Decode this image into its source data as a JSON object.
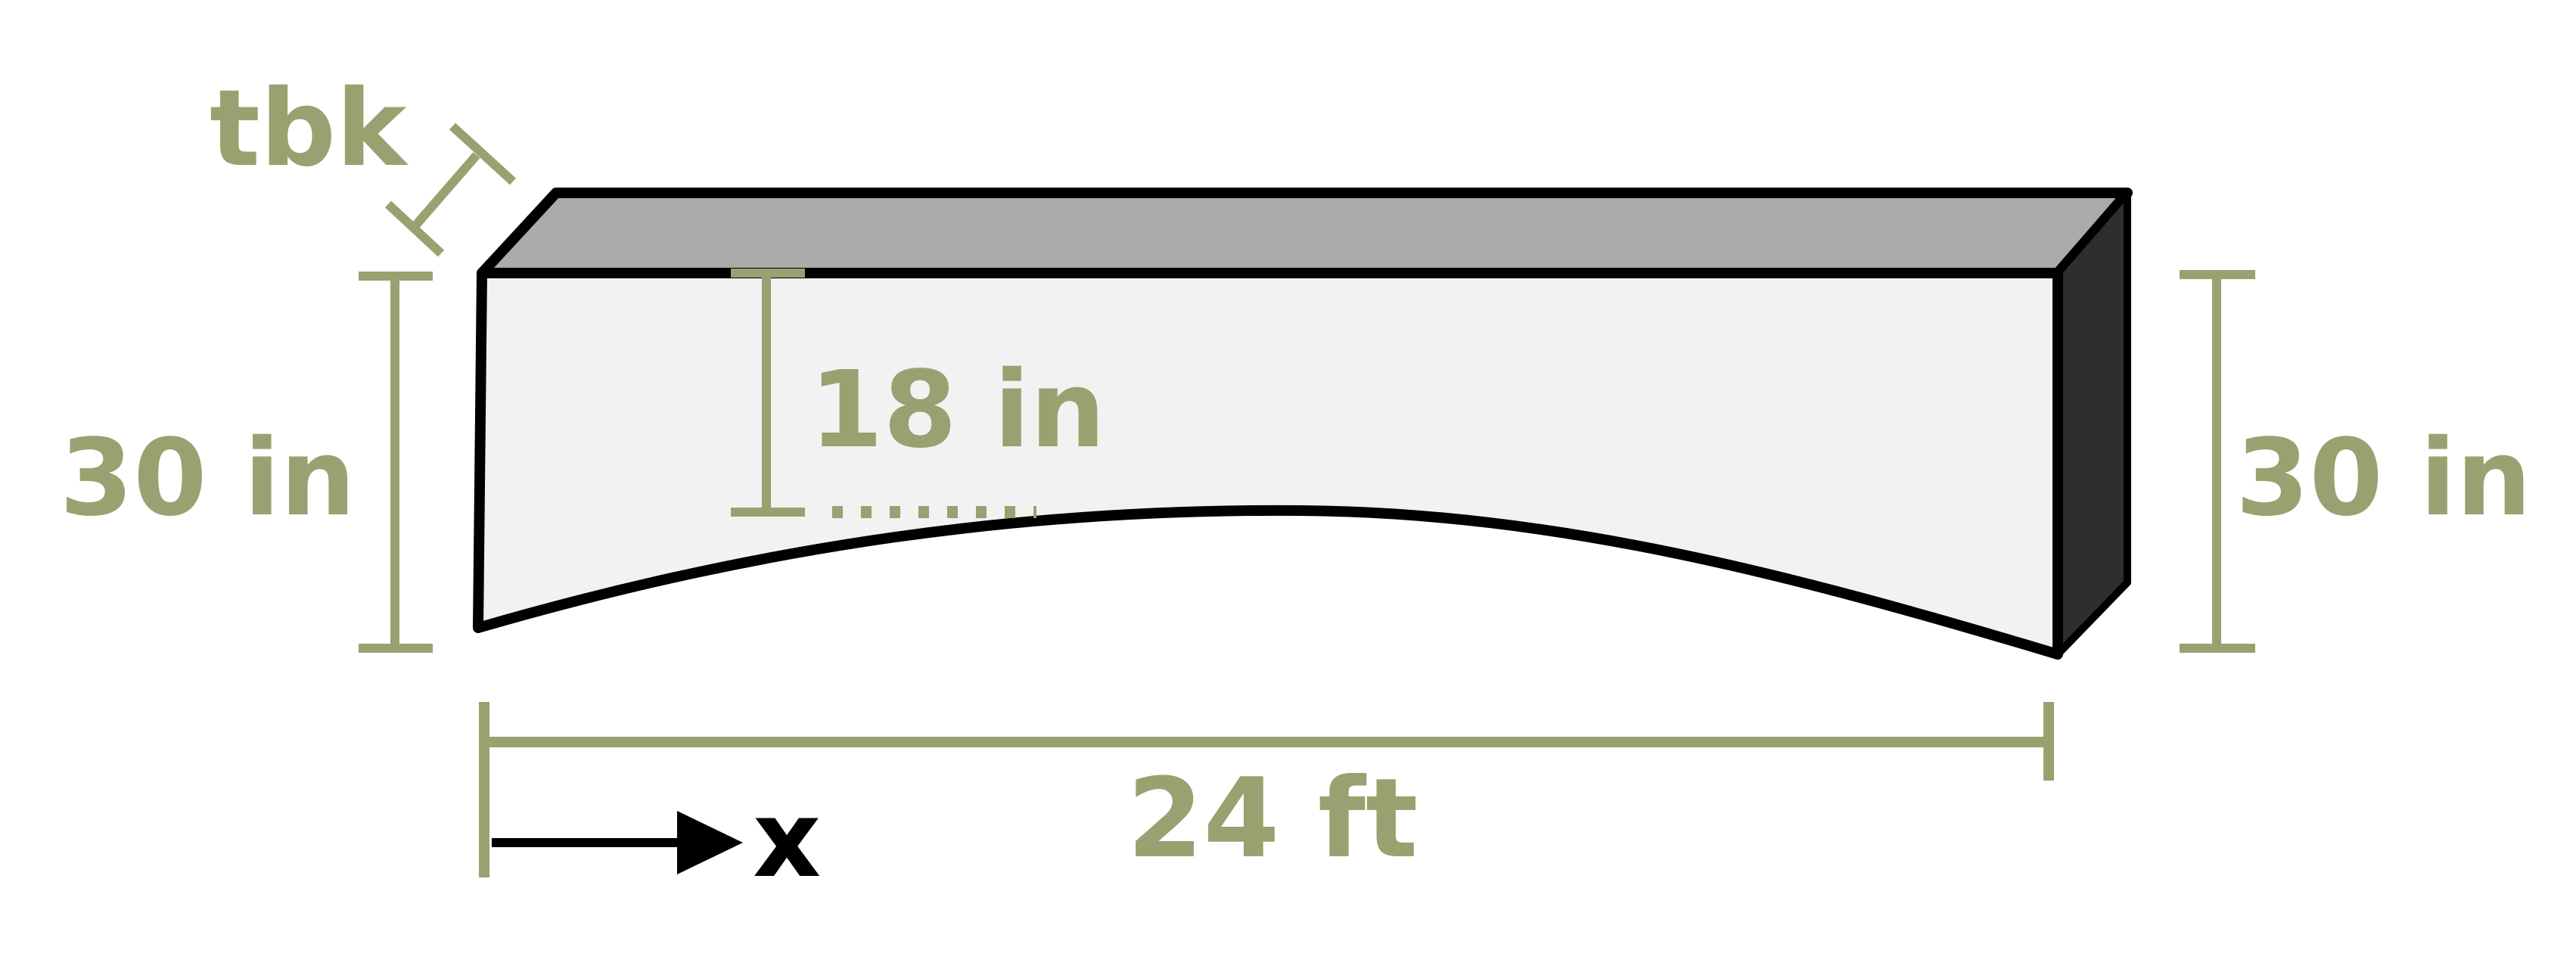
{
  "labels": {
    "thickness": "tbk",
    "left_height": "30 in",
    "inner_depth": "18 in",
    "right_height": "30 in",
    "span": "24 ft",
    "axis": "x"
  },
  "colors": {
    "dimension": "#9ba070",
    "outline": "#000000",
    "top_face": "#ababab",
    "front_face": "#f2f2f2",
    "end_face": "#2e2e2e",
    "background": "#ffffff"
  }
}
